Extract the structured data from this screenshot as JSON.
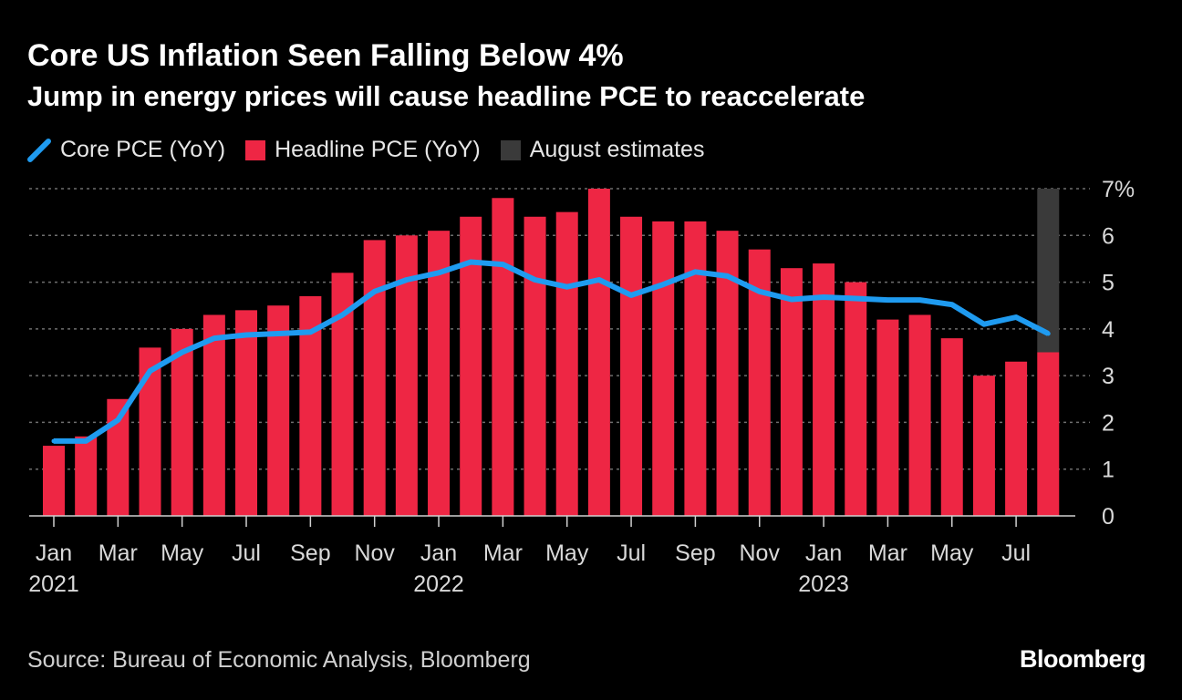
{
  "title": "Core US Inflation Seen Falling Below 4%",
  "subtitle": "Jump in energy prices will cause headline PCE to reaccelerate",
  "legend": {
    "core": "Core PCE (YoY)",
    "headline": "Headline PCE (YoY)",
    "estimates": "August estimates"
  },
  "source": "Source: Bureau of Economic Analysis, Bloomberg",
  "brand": "Bloomberg",
  "colors": {
    "background": "#000000",
    "headline_bar": "#ee2644",
    "core_line": "#1f9bf0",
    "estimate_band": "#3a3a3a",
    "grid": "#6e6e6e",
    "axis_text": "#d9d9d9"
  },
  "chart_data": {
    "type": "bar",
    "months": [
      "2021-01",
      "2021-02",
      "2021-03",
      "2021-04",
      "2021-05",
      "2021-06",
      "2021-07",
      "2021-08",
      "2021-09",
      "2021-10",
      "2021-11",
      "2021-12",
      "2022-01",
      "2022-02",
      "2022-03",
      "2022-04",
      "2022-05",
      "2022-06",
      "2022-07",
      "2022-08",
      "2022-09",
      "2022-10",
      "2022-11",
      "2022-12",
      "2023-01",
      "2023-02",
      "2023-03",
      "2023-04",
      "2023-05",
      "2023-06",
      "2023-07",
      "2023-08"
    ],
    "series": [
      {
        "name": "Headline PCE (YoY)",
        "type": "bar",
        "values": [
          1.5,
          1.7,
          2.5,
          3.6,
          4.0,
          4.3,
          4.4,
          4.5,
          4.7,
          5.2,
          5.9,
          6.0,
          6.1,
          6.4,
          6.8,
          6.4,
          6.5,
          7.0,
          6.4,
          6.3,
          6.3,
          6.1,
          5.7,
          5.3,
          5.4,
          5.0,
          4.2,
          4.3,
          3.8,
          3.0,
          3.3,
          3.5
        ]
      },
      {
        "name": "Core PCE (YoY)",
        "type": "line",
        "values": [
          1.6,
          1.6,
          2.05,
          3.1,
          3.5,
          3.8,
          3.87,
          3.9,
          3.93,
          4.3,
          4.8,
          5.05,
          5.2,
          5.43,
          5.38,
          5.05,
          4.9,
          5.05,
          4.72,
          4.95,
          5.22,
          5.13,
          4.8,
          4.63,
          4.68,
          4.65,
          4.62,
          4.62,
          4.52,
          4.1,
          4.25,
          3.9
        ]
      }
    ],
    "estimate_range": [
      3.5,
      7.0
    ],
    "x_ticks": [
      {
        "label": "Jan",
        "year": "2021"
      },
      {
        "label": "Mar",
        "year": ""
      },
      {
        "label": "May",
        "year": ""
      },
      {
        "label": "Jul",
        "year": ""
      },
      {
        "label": "Sep",
        "year": ""
      },
      {
        "label": "Nov",
        "year": ""
      },
      {
        "label": "Jan",
        "year": "2022"
      },
      {
        "label": "Mar",
        "year": ""
      },
      {
        "label": "May",
        "year": ""
      },
      {
        "label": "Jul",
        "year": ""
      },
      {
        "label": "Sep",
        "year": ""
      },
      {
        "label": "Nov",
        "year": ""
      },
      {
        "label": "Jan",
        "year": "2023"
      },
      {
        "label": "Mar",
        "year": ""
      },
      {
        "label": "May",
        "year": ""
      },
      {
        "label": "Jul",
        "year": ""
      }
    ],
    "y_ticks": [
      "0",
      "1",
      "2",
      "3",
      "4",
      "5",
      "6",
      "7%"
    ],
    "ylim": [
      0,
      7
    ],
    "grid": true,
    "legend_position": "top-left"
  }
}
